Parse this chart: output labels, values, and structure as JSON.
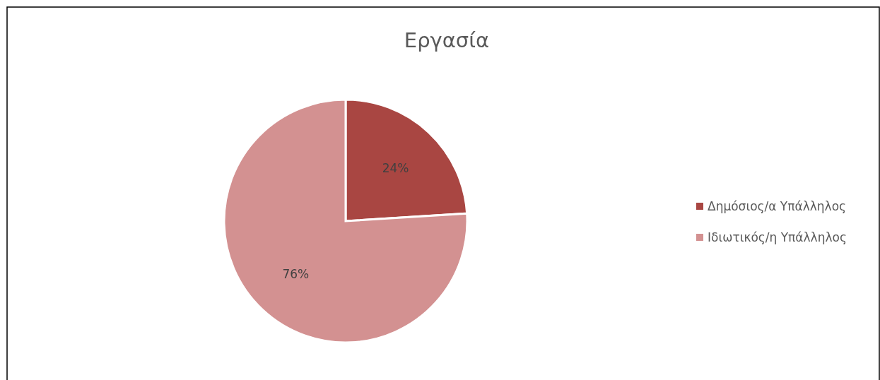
{
  "chart_data": {
    "type": "pie",
    "title": "Εργασία",
    "categories": [
      "Δημόσιος/α Υπάλληλος",
      "Ιδιωτικός/η Υπάλληλος"
    ],
    "values": [
      24,
      76
    ],
    "colors": [
      "#a94642",
      "#d39191"
    ],
    "value_labels": [
      "24%",
      "76%"
    ],
    "legend": "right"
  }
}
